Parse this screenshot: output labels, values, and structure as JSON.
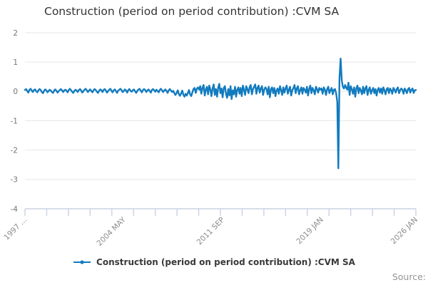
{
  "page": {
    "title": "Construction (period on period contribution) :CVM SA",
    "source_label": "Source:"
  },
  "legend": {
    "label": "Construction (period on period contribution) :CVM SA",
    "marker_color": "#127bbf"
  },
  "chart_data": {
    "type": "line",
    "title": "Construction (period on period contribution) :CVM SA",
    "series_name": "Construction (period on period contribution) :CVM SA",
    "frequency": "monthly",
    "x_start": "1997 JAN",
    "x_end": "2026 JAN",
    "ylim": [
      -4,
      2
    ],
    "yticks": [
      2,
      1,
      0,
      -1,
      -2,
      -3,
      -4
    ],
    "xticks": [
      {
        "label": "1997 ...",
        "month_index": 0
      },
      {
        "label": "2004 MAY",
        "month_index": 88
      },
      {
        "label": "2011 SEP",
        "month_index": 176
      },
      {
        "label": "2019 JAN",
        "month_index": 264
      },
      {
        "label": "2026 JAN",
        "month_index": 348
      }
    ],
    "grid_on": true,
    "legend_position": "bottom",
    "line_color": "#127bbf",
    "grid_color": "#e6e6e6",
    "axis_color": "#c9d2e4",
    "minor_tick_count": 19,
    "values": [
      0.05,
      0.08,
      0.02,
      -0.04,
      0.06,
      0.09,
      0.03,
      -0.02,
      0.05,
      0.07,
      0.01,
      -0.03,
      0.04,
      0.08,
      0.05,
      -0.02,
      -0.06,
      0.02,
      0.07,
      0.04,
      -0.03,
      0.01,
      0.06,
      0.03,
      -0.02,
      -0.05,
      0.03,
      0.07,
      0.02,
      -0.04,
      0.01,
      0.05,
      0.08,
      0.03,
      -0.02,
      0.04,
      0.06,
      0.02,
      -0.03,
      0.05,
      0.09,
      0.04,
      -0.01,
      -0.05,
      0.02,
      0.06,
      0.03,
      -0.02,
      0.05,
      0.08,
      0.03,
      -0.04,
      0.01,
      0.06,
      0.09,
      0.04,
      -0.02,
      0.03,
      0.07,
      0.02,
      -0.03,
      0.04,
      0.08,
      0.05,
      -0.01,
      -0.05,
      0.02,
      0.07,
      0.04,
      -0.02,
      0.05,
      0.08,
      0.03,
      -0.04,
      0.01,
      0.06,
      0.09,
      0.02,
      -0.03,
      0.04,
      0.07,
      0.01,
      -0.05,
      0.03,
      0.06,
      0.09,
      0.04,
      -0.02,
      0.02,
      0.07,
      0.03,
      -0.04,
      0.05,
      0.08,
      0.02,
      -0.01,
      0.04,
      0.07,
      0.01,
      -0.05,
      0.02,
      0.06,
      0.09,
      0.03,
      -0.03,
      0.04,
      0.08,
      0.05,
      -0.02,
      0.03,
      0.07,
      0.02,
      -0.04,
      0.05,
      0.08,
      0.04,
      -0.01,
      0.06,
      0.02,
      -0.03,
      0.05,
      0.09,
      0.04,
      -0.02,
      0.03,
      0.07,
      0.02,
      -0.05,
      0.04,
      0.08,
      0.03,
      -0.02,
      0.02,
      -0.06,
      -0.12,
      -0.05,
      0.04,
      -0.09,
      -0.15,
      -0.07,
      0.03,
      -0.11,
      -0.18,
      -0.08,
      -0.14,
      -0.06,
      0.05,
      -0.1,
      -0.16,
      -0.04,
      0.08,
      0.12,
      -0.05,
      0.09,
      0.14,
      0.06,
      0.18,
      -0.08,
      0.12,
      0.22,
      -0.14,
      0.06,
      0.16,
      -0.1,
      0.2,
      0.08,
      -0.16,
      0.1,
      0.24,
      -0.12,
      0.08,
      -0.18,
      0.14,
      0.26,
      -0.06,
      0.1,
      -0.2,
      0.12,
      0.18,
      -0.1,
      -0.22,
      0.08,
      -0.14,
      0.18,
      -0.26,
      0.04,
      -0.1,
      0.16,
      -0.18,
      0.06,
      0.14,
      -0.08,
      0.12,
      -0.16,
      0.2,
      0.06,
      -0.12,
      0.18,
      0.08,
      -0.06,
      0.14,
      0.22,
      -0.1,
      0.08,
      0.16,
      0.24,
      -0.08,
      0.12,
      0.2,
      -0.04,
      0.1,
      0.18,
      -0.12,
      0.06,
      0.14,
      0.08,
      -0.1,
      0.16,
      -0.2,
      0.08,
      0.14,
      -0.06,
      0.12,
      -0.16,
      0.04,
      0.1,
      -0.08,
      0.18,
      0.06,
      -0.12,
      0.14,
      -0.04,
      0.1,
      0.2,
      -0.08,
      0.06,
      0.16,
      -0.14,
      0.04,
      0.12,
      0.22,
      -0.06,
      0.1,
      0.18,
      -0.1,
      0.04,
      0.14,
      -0.08,
      0.12,
      0.06,
      -0.04,
      0.16,
      -0.14,
      0.08,
      0.2,
      -0.06,
      0.12,
      0.04,
      -0.1,
      0.16,
      0.08,
      -0.04,
      0.12,
      0.06,
      0.1,
      -0.08,
      0.14,
      0.06,
      -0.12,
      0.08,
      0.16,
      -0.06,
      0.04,
      0.12,
      -0.1,
      0.06,
      0.08,
      -0.06,
      -0.35,
      -2.62,
      0.45,
      1.12,
      0.38,
      0.16,
      0.1,
      0.22,
      0.12,
      0.06,
      0.3,
      -0.12,
      0.18,
      0.08,
      -0.08,
      0.14,
      -0.18,
      0.1,
      0.2,
      -0.06,
      0.12,
      0.04,
      -0.1,
      0.16,
      -0.06,
      0.1,
      0.18,
      -0.12,
      0.06,
      0.14,
      -0.08,
      0.04,
      0.12,
      -0.06,
      0.08,
      -0.14,
      0.06,
      0.12,
      -0.04,
      0.1,
      -0.08,
      0.14,
      0.04,
      -0.1,
      0.08,
      0.12,
      -0.06,
      0.1,
      0.04,
      -0.08,
      0.12,
      0.06,
      -0.04,
      0.08,
      0.14,
      -0.06,
      0.04,
      0.1,
      0.06,
      -0.08,
      0.1,
      0.04,
      -0.06,
      0.08,
      0.12,
      -0.04,
      0.06,
      0.1,
      -0.05,
      0.04,
      0.05
    ]
  }
}
